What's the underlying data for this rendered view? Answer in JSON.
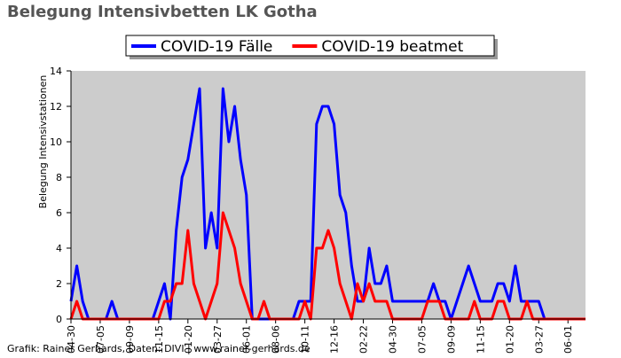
{
  "chart_data": {
    "type": "line",
    "title": "Belegung Intensivbetten LK Gotha",
    "y_label": "Belegung Intensivstationen",
    "source": "Grafik: Rainer Gerhards, Daten: DIVI | www.rainer-gerhards.de",
    "categories": [
      "04-30",
      null,
      null,
      null,
      null,
      "07-05",
      null,
      null,
      null,
      null,
      "09-09",
      null,
      null,
      null,
      null,
      "11-15",
      null,
      null,
      null,
      null,
      "01-20",
      null,
      null,
      null,
      null,
      "03-27",
      null,
      null,
      null,
      null,
      "06-01",
      null,
      null,
      null,
      null,
      "08-06",
      null,
      null,
      null,
      null,
      "10-11",
      null,
      null,
      null,
      null,
      "12-16",
      null,
      null,
      null,
      null,
      "02-22",
      null,
      null,
      null,
      null,
      "04-30",
      null,
      null,
      null,
      null,
      "07-05",
      null,
      null,
      null,
      null,
      "09-09",
      null,
      null,
      null,
      null,
      "11-15",
      null,
      null,
      null,
      null,
      "01-20",
      null,
      null,
      null,
      null,
      "03-27",
      null,
      null,
      null,
      null,
      "06-01",
      null,
      null,
      null
    ],
    "series": [
      {
        "name": "COVID-19 Fälle",
        "color": "#0000ff",
        "values": [
          1,
          3,
          1,
          0,
          0,
          0,
          0,
          1,
          0,
          0,
          0,
          0,
          0,
          0,
          0,
          1,
          2,
          0,
          5,
          8,
          9,
          11,
          13,
          4,
          6,
          4,
          13,
          10,
          12,
          9,
          7,
          0,
          0,
          0,
          0,
          0,
          0,
          0,
          0,
          1,
          1,
          1,
          11,
          12,
          12,
          11,
          7,
          6,
          3,
          1,
          1,
          4,
          2,
          2,
          3,
          1,
          1,
          1,
          1,
          1,
          1,
          1,
          2,
          1,
          1,
          0,
          1,
          2,
          3,
          2,
          1,
          1,
          1,
          2,
          2,
          1,
          3,
          1,
          1,
          1,
          1,
          0,
          0,
          0,
          0,
          0,
          0,
          0,
          0
        ]
      },
      {
        "name": "COVID-19 beatmet",
        "color": "#ff0000",
        "values": [
          0,
          1,
          0,
          0,
          0,
          0,
          0,
          0,
          0,
          0,
          0,
          0,
          0,
          0,
          0,
          0,
          1,
          1,
          2,
          2,
          5,
          2,
          1,
          0,
          1,
          2,
          6,
          5,
          4,
          2,
          1,
          0,
          0,
          1,
          0,
          0,
          0,
          0,
          0,
          0,
          1,
          0,
          4,
          4,
          5,
          4,
          2,
          1,
          0,
          2,
          1,
          2,
          1,
          1,
          1,
          0,
          0,
          0,
          0,
          0,
          0,
          1,
          1,
          1,
          0,
          0,
          0,
          0,
          0,
          1,
          0,
          0,
          0,
          1,
          1,
          0,
          0,
          0,
          1,
          0,
          0,
          0,
          0,
          0,
          0,
          0,
          0,
          0,
          0
        ]
      }
    ],
    "ylim": [
      0,
      14
    ],
    "yticks": [
      0,
      2,
      4,
      6,
      8,
      10,
      12,
      14
    ],
    "grid": false,
    "background": "#cccccc",
    "legend": "top"
  }
}
